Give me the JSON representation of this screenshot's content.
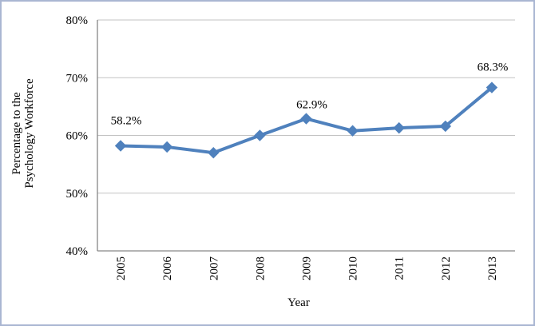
{
  "frame": {
    "border_color": "#aab6d2",
    "background_color": "#ffffff"
  },
  "chart_data": {
    "type": "line",
    "title": "",
    "xlabel": "Year",
    "ylabel": "Percentage to the Psychology Workforce",
    "ylabel_lines": [
      "Percentage to the",
      "Psychology Workforce"
    ],
    "categories": [
      "2005",
      "2006",
      "2007",
      "2008",
      "2009",
      "2010",
      "2011",
      "2012",
      "2013"
    ],
    "series": [
      {
        "name": "Percentage to the Psychology Workforce",
        "values": [
          58.2,
          58.0,
          57.0,
          60.0,
          62.9,
          60.8,
          61.3,
          61.6,
          68.3
        ],
        "color": "#4f81bd",
        "marker": "diamond"
      }
    ],
    "ylim": [
      40,
      80
    ],
    "yticks": [
      40,
      50,
      60,
      70,
      80
    ],
    "ytick_labels": [
      "40%",
      "50%",
      "60%",
      "70%",
      "80%"
    ],
    "grid": "horizontal",
    "legend_position": "none",
    "annotations": [
      {
        "x_index": 0,
        "text": "58.2%"
      },
      {
        "x_index": 4,
        "text": "62.9%"
      },
      {
        "x_index": 8,
        "text": "68.3%"
      }
    ],
    "colors": {
      "gridline": "#c3c3c3",
      "axis_line": "#868686",
      "text": "#000000"
    }
  }
}
